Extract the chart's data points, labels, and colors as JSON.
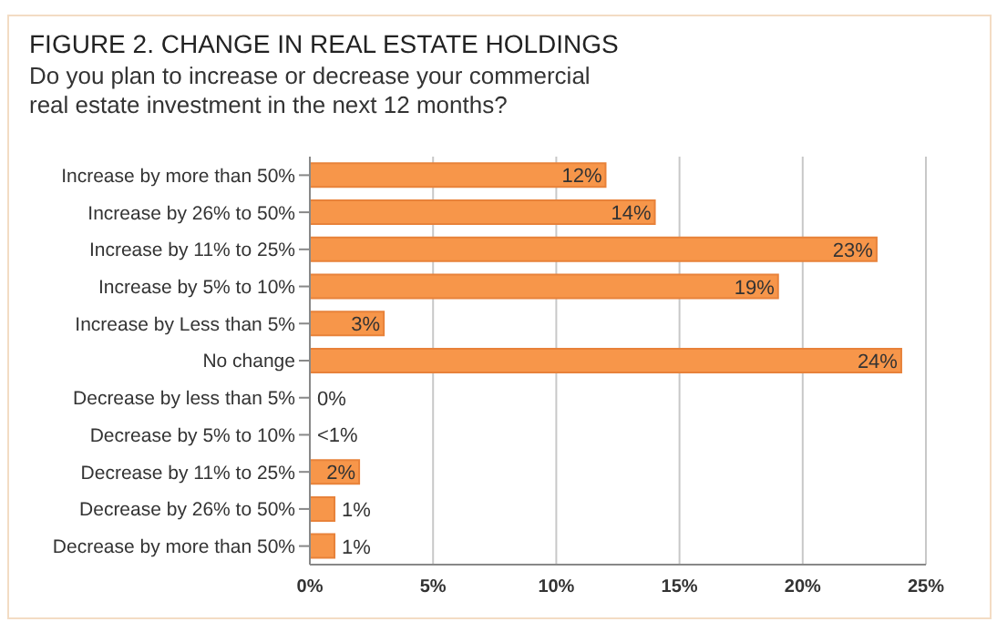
{
  "chart_data": {
    "type": "bar",
    "orientation": "horizontal",
    "title": "FIGURE 2. CHANGE IN REAL ESTATE HOLDINGS",
    "subtitle": "Do you plan to increase or decrease your commercial real estate investment in the next 12 months?",
    "categories": [
      "Increase by more than 50%",
      "Increase by 26% to 50%",
      "Increase by 11% to 25%",
      "Increase by 5% to 10%",
      "Increase by Less than 5%",
      "No change",
      "Decrease by less than 5%",
      "Decrease by 5% to 10%",
      "Decrease by 11% to 25%",
      "Decrease by 26% to 50%",
      "Decrease by more than 50%"
    ],
    "values": [
      12,
      14,
      23,
      19,
      3,
      24,
      0,
      null,
      2,
      1,
      1
    ],
    "value_labels": [
      "12%",
      "14%",
      "23%",
      "19%",
      "3%",
      "24%",
      "0%",
      "<1%",
      "2%",
      "1%",
      "1%"
    ],
    "color": "#f7964a",
    "xlim": [
      0,
      25
    ],
    "xticks": [
      {
        "value": 0,
        "label": "0%"
      },
      {
        "value": 5,
        "label": "5%"
      },
      {
        "value": 10,
        "label": "10%"
      },
      {
        "value": 15,
        "label": "15%"
      },
      {
        "value": 20,
        "label": "20%"
      },
      {
        "value": 25,
        "label": "25%"
      }
    ],
    "grid": "x",
    "legend": false
  }
}
